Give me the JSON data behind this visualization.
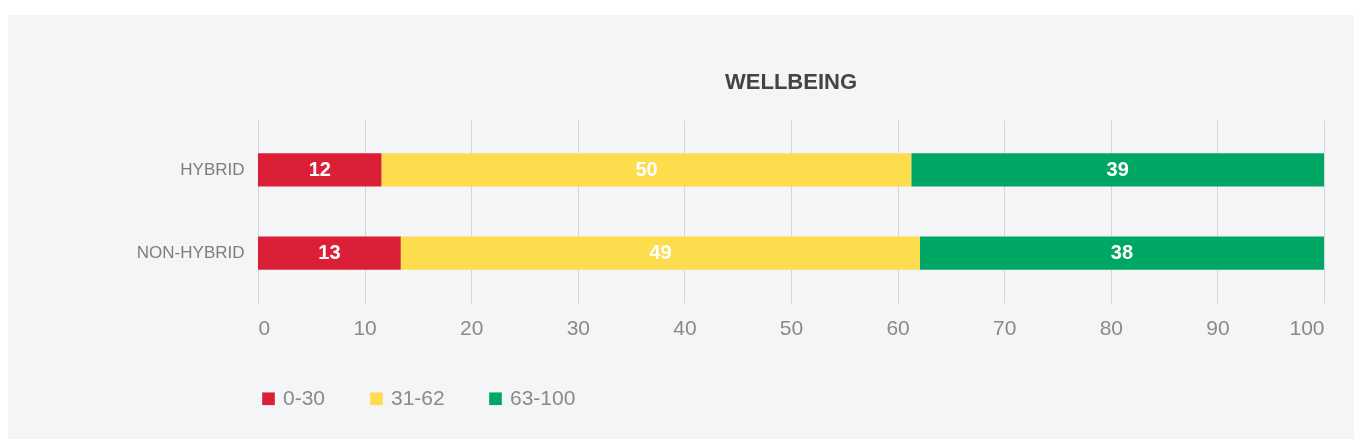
{
  "chart_data": {
    "type": "bar",
    "orientation": "horizontal",
    "stacked": true,
    "title": "WELLBEING",
    "categories": [
      "HYBRID",
      "NON-HYBRID"
    ],
    "series": [
      {
        "name": "0-30",
        "color": "#db1f37",
        "values": [
          11.6,
          13.4
        ],
        "value_labels": [
          "12",
          "13"
        ]
      },
      {
        "name": "31-62",
        "color": "#fddc4e",
        "values": [
          49.7,
          48.7
        ],
        "value_labels": [
          "50",
          "49"
        ]
      },
      {
        "name": "63-100",
        "color": "#00a664",
        "values": [
          38.7,
          37.9
        ],
        "value_labels": [
          "39",
          "38"
        ]
      }
    ],
    "xlim": [
      0,
      100
    ],
    "xticks": [
      0,
      10,
      20,
      30,
      40,
      50,
      60,
      70,
      80,
      90,
      100
    ],
    "grid": "x",
    "legend": "bottom"
  }
}
